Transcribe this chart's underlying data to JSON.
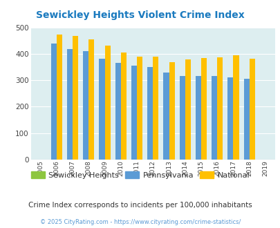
{
  "title": "Sewickley Heights Violent Crime Index",
  "years": [
    2005,
    2006,
    2007,
    2008,
    2009,
    2010,
    2011,
    2012,
    2013,
    2014,
    2015,
    2016,
    2017,
    2018,
    2019
  ],
  "sewickley_heights": [
    0,
    0,
    0,
    0,
    0,
    0,
    0,
    0,
    0,
    0,
    0,
    0,
    0,
    0,
    0
  ],
  "pennsylvania": [
    0,
    438,
    417,
    409,
    381,
    366,
    355,
    349,
    329,
    315,
    315,
    315,
    311,
    305,
    0
  ],
  "national": [
    0,
    474,
    467,
    455,
    431,
    405,
    390,
    390,
    368,
    380,
    383,
    386,
    395,
    381,
    0
  ],
  "color_sewickley": "#8dc63f",
  "color_pennsylvania": "#5b9bd5",
  "color_national": "#ffc000",
  "bg_color": "#ddeef0",
  "ylim": [
    0,
    500
  ],
  "yticks": [
    0,
    100,
    200,
    300,
    400,
    500
  ],
  "subtitle": "Crime Index corresponds to incidents per 100,000 inhabitants",
  "footer": "© 2025 CityRating.com - https://www.cityrating.com/crime-statistics/",
  "title_color": "#1a7abf",
  "subtitle_color": "#333333",
  "footer_color": "#5b9bd5"
}
